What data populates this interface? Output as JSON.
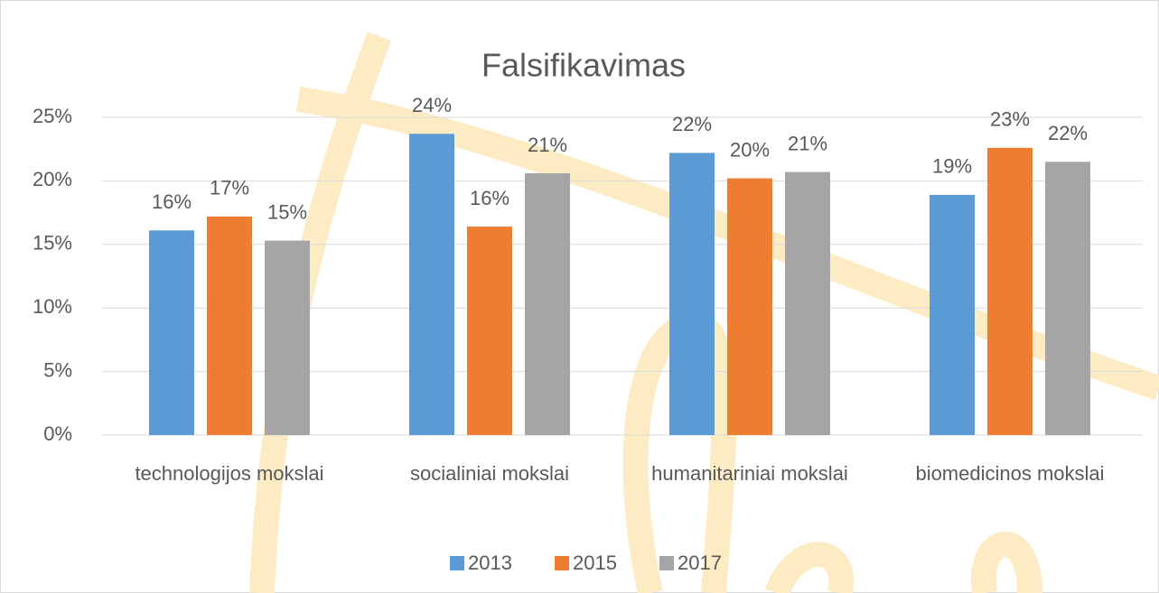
{
  "chart_data": {
    "type": "bar",
    "title": "Falsifikavimas",
    "categories": [
      "technologijos mokslai",
      "socialiniai mokslai",
      "humanitariniai mokslai",
      "biomedicinos mokslai"
    ],
    "series": [
      {
        "name": "2013",
        "color": "#5b9bd5",
        "values": [
          16.1,
          23.7,
          22.2,
          18.9
        ],
        "value_labels": [
          "16%",
          "24%",
          "22%",
          "19%"
        ]
      },
      {
        "name": "2015",
        "color": "#ed7d31",
        "values": [
          17.2,
          16.4,
          20.2,
          22.6
        ],
        "value_labels": [
          "17%",
          "16%",
          "20%",
          "23%"
        ]
      },
      {
        "name": "2017",
        "color": "#a5a5a5",
        "values": [
          15.3,
          20.6,
          20.7,
          21.5
        ],
        "value_labels": [
          "15%",
          "21%",
          "21%",
          "22%"
        ]
      }
    ],
    "ylim": [
      0,
      25
    ],
    "yticks": [
      {
        "value": 0,
        "label": "0%"
      },
      {
        "value": 5,
        "label": "5%"
      },
      {
        "value": 10,
        "label": "10%"
      },
      {
        "value": 15,
        "label": "15%"
      },
      {
        "value": 20,
        "label": "20%"
      },
      {
        "value": 25,
        "label": "25%"
      }
    ],
    "grid": true,
    "legend": "bottom"
  }
}
